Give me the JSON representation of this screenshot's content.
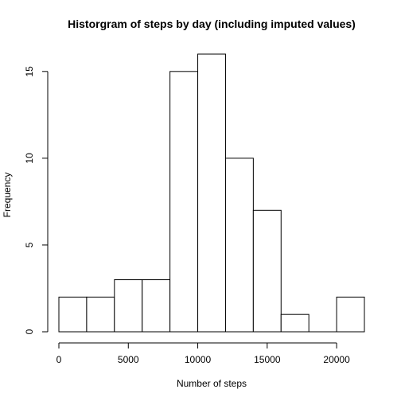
{
  "chart_data": {
    "type": "bar",
    "title": "Historgram of steps by day (including imputed values)",
    "xlabel": "Number of steps",
    "ylabel": "Frequency",
    "bins": [
      {
        "from": 0,
        "to": 2000,
        "count": 2
      },
      {
        "from": 2000,
        "to": 4000,
        "count": 2
      },
      {
        "from": 4000,
        "to": 6000,
        "count": 3
      },
      {
        "from": 6000,
        "to": 8000,
        "count": 3
      },
      {
        "from": 8000,
        "to": 10000,
        "count": 15
      },
      {
        "from": 10000,
        "to": 12000,
        "count": 16
      },
      {
        "from": 12000,
        "to": 14000,
        "count": 10
      },
      {
        "from": 14000,
        "to": 16000,
        "count": 7
      },
      {
        "from": 16000,
        "to": 18000,
        "count": 1
      },
      {
        "from": 18000,
        "to": 20000,
        "count": 0
      },
      {
        "from": 20000,
        "to": 22000,
        "count": 2
      }
    ],
    "xlim": [
      0,
      22000
    ],
    "ylim": [
      0,
      16
    ],
    "xticks": [
      0,
      5000,
      10000,
      15000,
      20000
    ],
    "xtick_labels": [
      "0",
      "5000",
      "10000",
      "15000",
      "20000"
    ],
    "yticks": [
      0,
      5,
      10,
      15
    ],
    "ytick_labels": [
      "0",
      "5",
      "10",
      "15"
    ],
    "grid": false,
    "legend": "none",
    "colors": {
      "bar_fill": "#ffffff",
      "bar_stroke": "#000000",
      "text": "#000000"
    }
  }
}
